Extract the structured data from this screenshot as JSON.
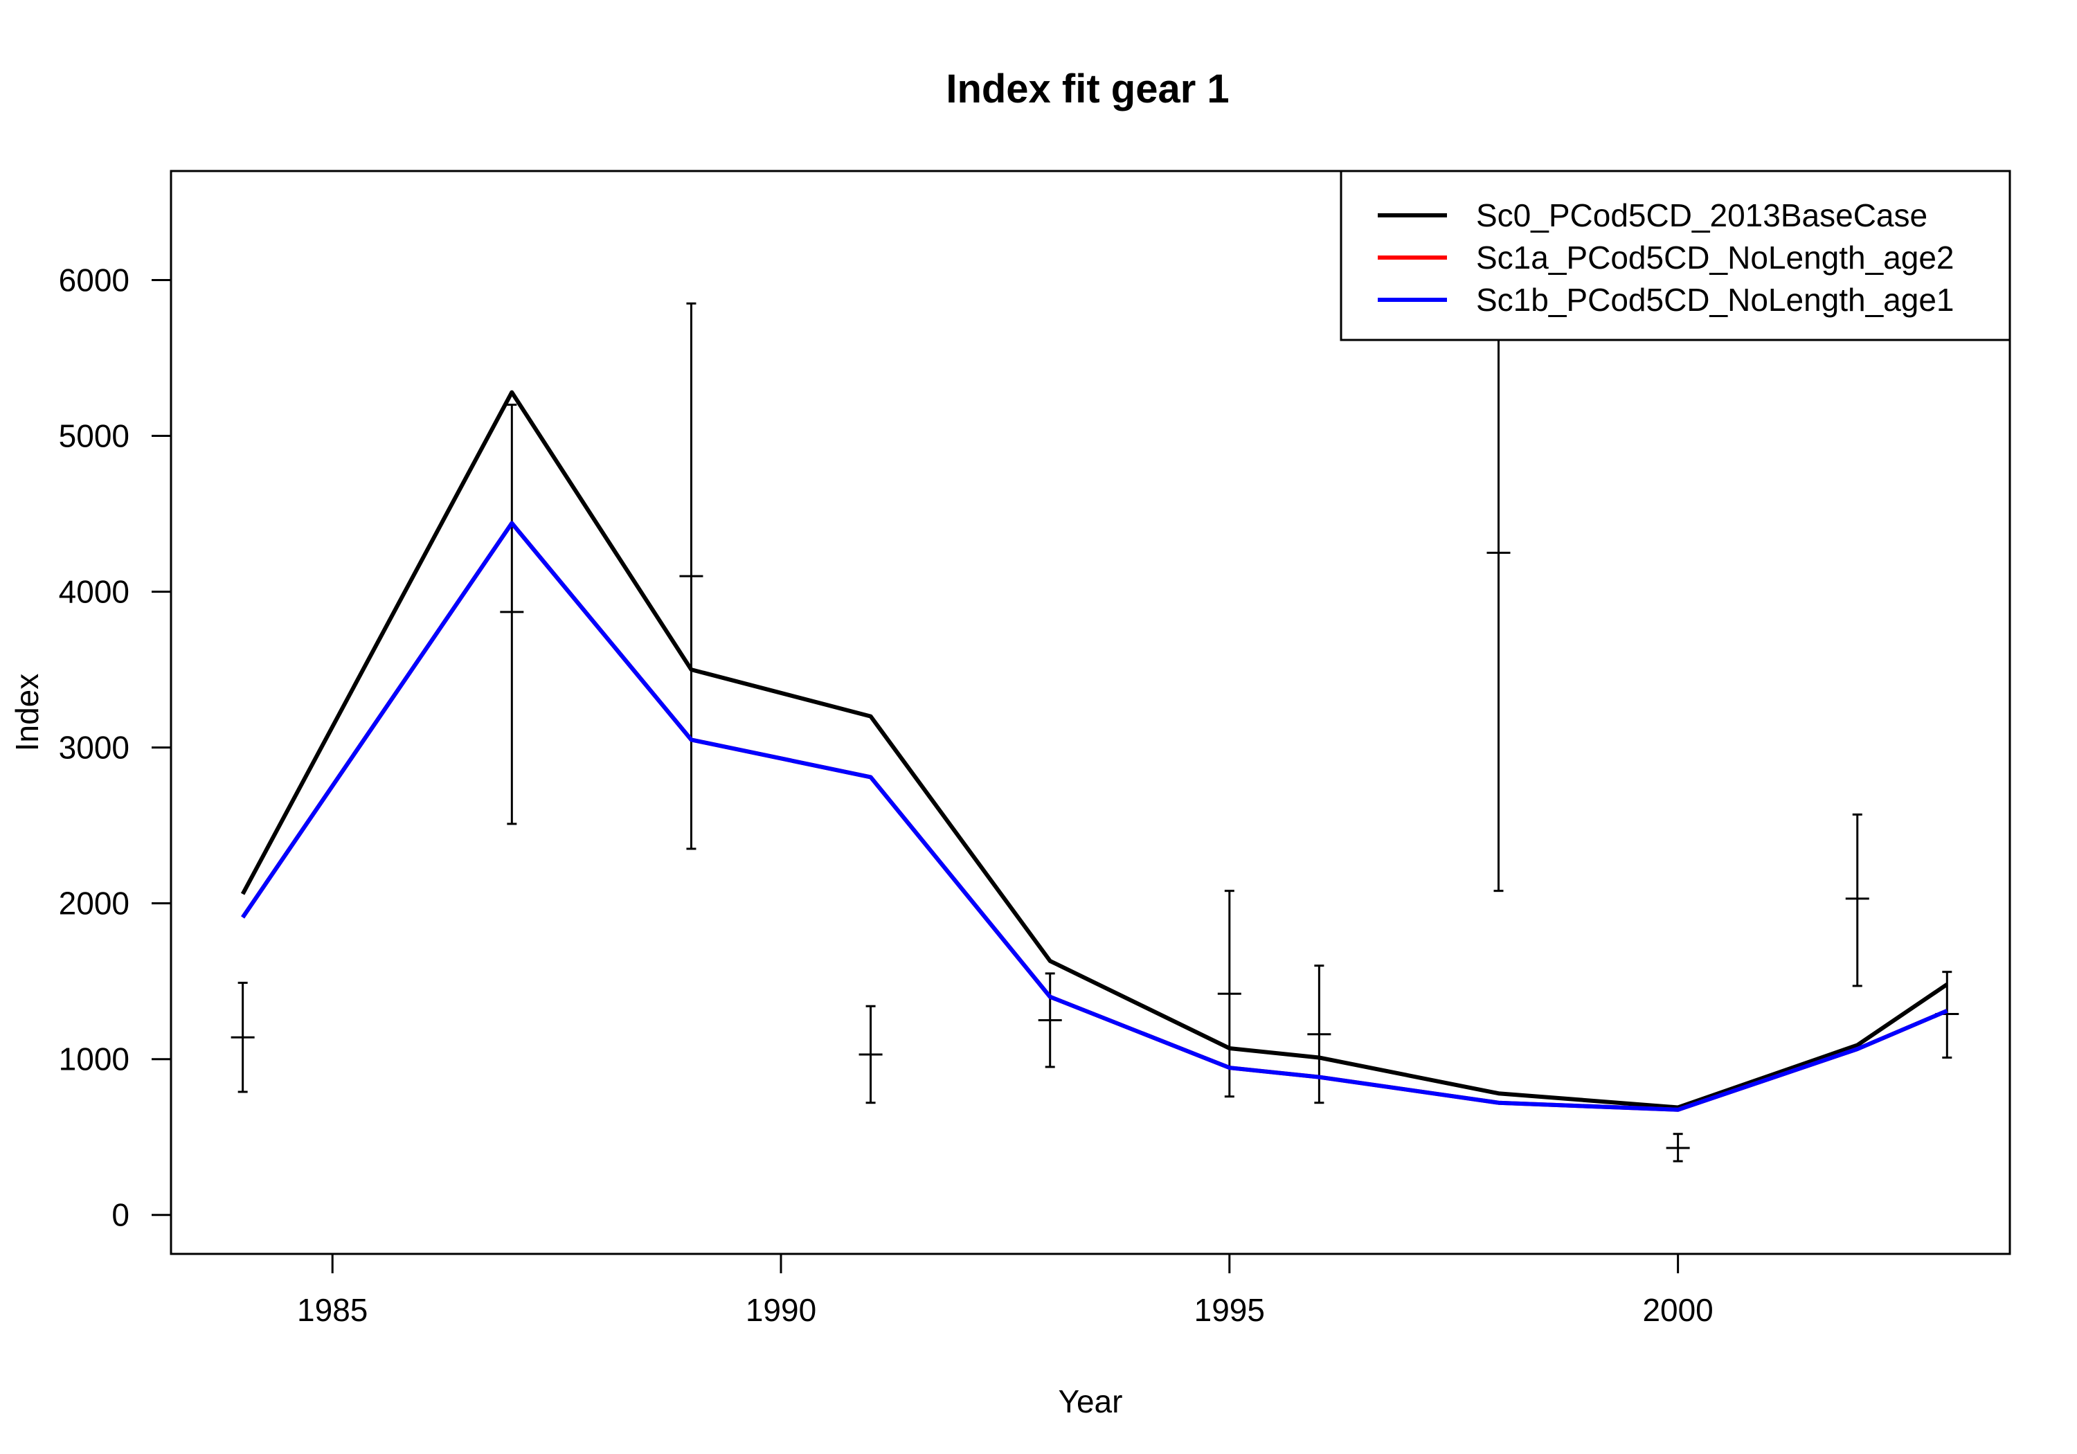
{
  "chart_data": {
    "type": "line",
    "title": "Index fit gear 1",
    "xlabel": "Year",
    "ylabel": "Index",
    "xlim": [
      1983.2,
      2003.7
    ],
    "ylim": [
      -250,
      6700
    ],
    "xticks": [
      1985,
      1990,
      1995,
      2000
    ],
    "yticks": [
      0,
      1000,
      2000,
      3000,
      4000,
      5000,
      6000
    ],
    "grid": false,
    "legend_position": "top-right",
    "series": [
      {
        "name": "Sc0_PCod5CD_2013BaseCase",
        "color": "#000000",
        "x": [
          1984,
          1987,
          1989,
          1991,
          1993,
          1995,
          1996,
          1998,
          2000,
          2002,
          2003
        ],
        "y": [
          2060,
          5280,
          3500,
          3200,
          1630,
          1070,
          1010,
          780,
          690,
          1090,
          1480
        ]
      },
      {
        "name": "Sc1a_PCod5CD_NoLength_age2",
        "color": "#ff0000",
        "x": [
          1984,
          1987,
          1989,
          1991,
          1993,
          1995,
          1996,
          1998,
          2000,
          2002,
          2003
        ],
        "y": [
          1910,
          4440,
          3050,
          2810,
          1400,
          945,
          885,
          720,
          675,
          1065,
          1310
        ]
      },
      {
        "name": "Sc1b_PCod5CD_NoLength_age1",
        "color": "#0000ff",
        "x": [
          1984,
          1987,
          1989,
          1991,
          1993,
          1995,
          1996,
          1998,
          2000,
          2002,
          2003
        ],
        "y": [
          1910,
          4440,
          3050,
          2810,
          1400,
          945,
          885,
          720,
          675,
          1065,
          1310
        ]
      }
    ],
    "observations": {
      "x": [
        1984,
        1987,
        1989,
        1991,
        1993,
        1995,
        1996,
        1998,
        2000,
        2002,
        2003
      ],
      "y": [
        1140,
        3870,
        4100,
        1030,
        1250,
        1420,
        1160,
        4250,
        430,
        2030,
        1290
      ],
      "lower": [
        790,
        2510,
        2350,
        720,
        950,
        760,
        720,
        2080,
        345,
        1470,
        1010
      ],
      "upper": [
        1490,
        5200,
        5850,
        1340,
        1550,
        2080,
        1600,
        6700,
        520,
        2570,
        1560
      ]
    }
  }
}
